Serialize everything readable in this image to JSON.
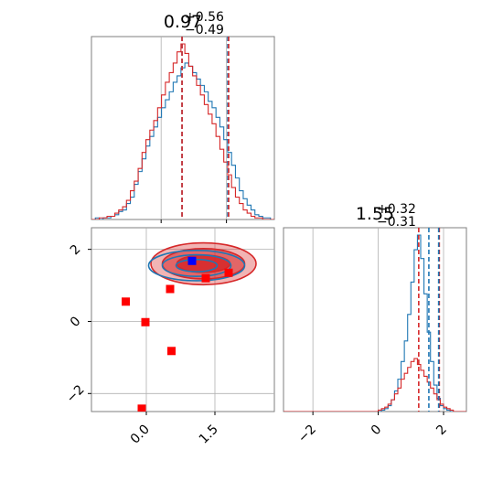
{
  "chart_data": [
    {
      "type": "histogram",
      "panel": "top-left",
      "title": {
        "main": "0.97",
        "sup": "+0.56",
        "sub": "−0.49"
      },
      "xlim": [
        -1.6,
        2.6
      ],
      "grid": true,
      "series": [
        {
          "color": "#1f77b4",
          "values": [
            0,
            1,
            0,
            1,
            1,
            2,
            3,
            5,
            6,
            10,
            14,
            22,
            30,
            38,
            46,
            52,
            58,
            64,
            70,
            75,
            80,
            86,
            90,
            95,
            98,
            96,
            92,
            88,
            84,
            80,
            74,
            70,
            64,
            58,
            50,
            42,
            34,
            26,
            18,
            13,
            9,
            6,
            3,
            2,
            1,
            1,
            0
          ]
        },
        {
          "color": "#d62728",
          "values": [
            0,
            0,
            1,
            1,
            2,
            2,
            4,
            6,
            8,
            12,
            18,
            24,
            32,
            42,
            50,
            56,
            62,
            70,
            78,
            86,
            92,
            98,
            105,
            110,
            104,
            96,
            90,
            84,
            78,
            72,
            66,
            60,
            52,
            44,
            36,
            28,
            20,
            14,
            10,
            6,
            4,
            2,
            1,
            1,
            0,
            0,
            0
          ]
        }
      ],
      "vlines": [
        {
          "x": 0.48,
          "color": "#1f77b4"
        },
        {
          "x": 0.48,
          "color": "#d62728"
        },
        {
          "x": 1.53,
          "color": "#1f77b4"
        },
        {
          "x": 1.55,
          "color": "#d62728"
        }
      ]
    },
    {
      "type": "scatter",
      "panel": "bottom-left",
      "xlim": [
        -1.2,
        2.8
      ],
      "ylim": [
        -2.5,
        2.6
      ],
      "xticks": [
        "0.0",
        "1.5"
      ],
      "xtick_values": [
        0.0,
        1.5
      ],
      "yticks": [
        "−2",
        "0",
        "2"
      ],
      "ytick_values": [
        -2,
        0,
        2
      ],
      "grid": true,
      "contours": [
        {
          "color": "#d62728",
          "center": [
            1.25,
            1.6
          ],
          "radii": [
            [
              1.15,
              0.58
            ],
            [
              0.9,
              0.42
            ],
            [
              0.58,
              0.24
            ]
          ],
          "filled": true
        },
        {
          "color": "#1f77b4",
          "center": [
            1.1,
            1.55
          ],
          "radii": [
            [
              1.05,
              0.42
            ],
            [
              0.75,
              0.3
            ],
            [
              0.45,
              0.17
            ]
          ],
          "filled": false
        }
      ],
      "markers": [
        {
          "x": 1.0,
          "y": 1.68,
          "color": "#0000ff"
        },
        {
          "x": 1.8,
          "y": 1.35,
          "color": "#ff0000"
        },
        {
          "x": 1.3,
          "y": 1.2,
          "color": "#ff0000"
        },
        {
          "x": 0.52,
          "y": 0.9,
          "color": "#ff0000"
        },
        {
          "x": -0.45,
          "y": 0.55,
          "color": "#ff0000"
        },
        {
          "x": -0.02,
          "y": -0.02,
          "color": "#ff0000"
        },
        {
          "x": 0.55,
          "y": -0.82,
          "color": "#ff0000"
        },
        {
          "x": -0.1,
          "y": -2.42,
          "color": "#ff0000"
        }
      ]
    },
    {
      "type": "histogram",
      "panel": "bottom-right",
      "title": {
        "main": "1.55",
        "sup": "+0.32",
        "sub": "−0.31"
      },
      "xlim": [
        -2.9,
        2.7
      ],
      "xticks": [
        "−2",
        "0",
        "2"
      ],
      "xtick_values": [
        -2,
        0,
        2
      ],
      "grid": true,
      "series": [
        {
          "color": "#1f77b4",
          "values": [
            0,
            0,
            0,
            0,
            0,
            0,
            0,
            0,
            0,
            0,
            0,
            0,
            0,
            0,
            0,
            0,
            0,
            0,
            0,
            0,
            0,
            0,
            0,
            0,
            0,
            0,
            0,
            0,
            0,
            0,
            1,
            2,
            4,
            8,
            14,
            22,
            34,
            48,
            66,
            88,
            110,
            120,
            104,
            80,
            54,
            34,
            18,
            9,
            4,
            2,
            1,
            0,
            0,
            0,
            0,
            0
          ]
        },
        {
          "color": "#d62728",
          "values": [
            0,
            0,
            0,
            0,
            0,
            0,
            0,
            0,
            0,
            0,
            0,
            0,
            0,
            0,
            0,
            0,
            0,
            0,
            0,
            0,
            0,
            0,
            0,
            0,
            0,
            0,
            0,
            0,
            0,
            1,
            2,
            3,
            5,
            8,
            12,
            16,
            22,
            26,
            30,
            34,
            36,
            32,
            28,
            24,
            20,
            16,
            12,
            8,
            5,
            3,
            2,
            1,
            0,
            0,
            0,
            0
          ]
        }
      ],
      "vlines": [
        {
          "x": 1.24,
          "color": "#d62728"
        },
        {
          "x": 1.87,
          "color": "#d62728"
        },
        {
          "x": 1.55,
          "color": "#1f77b4"
        },
        {
          "x": 1.85,
          "color": "#1f77b4"
        }
      ]
    }
  ]
}
